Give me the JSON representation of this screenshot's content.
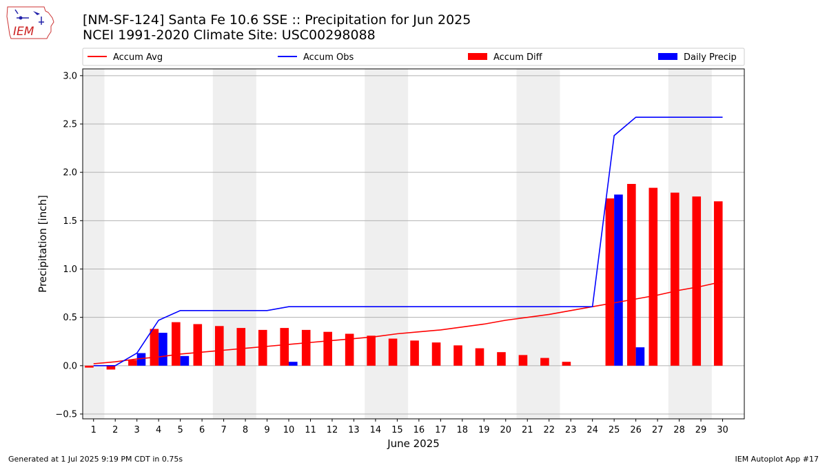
{
  "title_line1": "[NM-SF-124] Santa Fe 10.6 SSE :: Precipitation for Jun 2025",
  "title_line2": "NCEI 1991-2020 Climate Site: USC00298088",
  "footer_left": "Generated at 1 Jul 2025 9:19 PM CDT in 0.75s",
  "footer_right": "IEM Autoplot App #17",
  "logo_text": "IEM",
  "chart_data": {
    "type": "bar",
    "xlabel": "June 2025",
    "ylabel": "Precipitation [inch]",
    "xlim": [
      0.5,
      31
    ],
    "ylim": [
      -0.55,
      3.07
    ],
    "yticks": [
      -0.5,
      0.0,
      0.5,
      1.0,
      1.5,
      2.0,
      2.5,
      3.0
    ],
    "ytick_labels": [
      "−0.5",
      "0.0",
      "0.5",
      "1.0",
      "1.5",
      "2.0",
      "2.5",
      "3.0"
    ],
    "grid": "horizontal",
    "legend_placement": "top",
    "weekend_shading": [
      [
        0.5,
        1.5
      ],
      [
        6.5,
        8.5
      ],
      [
        13.5,
        15.5
      ],
      [
        20.5,
        22.5
      ],
      [
        27.5,
        29.5
      ]
    ],
    "days": [
      1,
      2,
      3,
      4,
      5,
      6,
      7,
      8,
      9,
      10,
      11,
      12,
      13,
      14,
      15,
      16,
      17,
      18,
      19,
      20,
      21,
      22,
      23,
      24,
      25,
      26,
      27,
      28,
      29,
      30
    ],
    "series": [
      {
        "name": "Accum Avg",
        "kind": "line",
        "color": "#ff0000",
        "values": [
          0.02,
          0.04,
          0.07,
          0.09,
          0.12,
          0.14,
          0.16,
          0.18,
          0.2,
          0.22,
          0.24,
          0.26,
          0.28,
          0.3,
          0.33,
          0.35,
          0.37,
          0.4,
          0.43,
          0.47,
          0.5,
          0.53,
          0.57,
          0.61,
          0.65,
          0.69,
          0.73,
          0.78,
          0.82,
          0.87
        ]
      },
      {
        "name": "Accum Obs",
        "kind": "line",
        "color": "#0000ff",
        "values": [
          0.0,
          0.0,
          0.13,
          0.47,
          0.57,
          0.57,
          0.57,
          0.57,
          0.57,
          0.61,
          0.61,
          0.61,
          0.61,
          0.61,
          0.61,
          0.61,
          0.61,
          0.61,
          0.61,
          0.61,
          0.61,
          0.61,
          0.61,
          0.61,
          2.38,
          2.57,
          2.57,
          2.57,
          2.57,
          2.57
        ]
      },
      {
        "name": "Accum Diff",
        "kind": "bar",
        "color": "#ff0000",
        "values": [
          -0.02,
          -0.04,
          0.06,
          0.38,
          0.45,
          0.43,
          0.41,
          0.39,
          0.37,
          0.39,
          0.37,
          0.35,
          0.33,
          0.31,
          0.28,
          0.26,
          0.24,
          0.21,
          0.18,
          0.14,
          0.11,
          0.08,
          0.04,
          0.0,
          1.73,
          1.88,
          1.84,
          1.79,
          1.75,
          1.7
        ]
      },
      {
        "name": "Daily Precip",
        "kind": "bar",
        "color": "#0000ff",
        "values": [
          0.0,
          0.0,
          0.13,
          0.34,
          0.1,
          0.0,
          0.0,
          0.0,
          0.0,
          0.04,
          0.0,
          0.0,
          0.0,
          0.0,
          0.0,
          0.0,
          0.0,
          0.0,
          0.0,
          0.0,
          0.0,
          0.0,
          0.0,
          0.0,
          1.77,
          0.19,
          0.0,
          0.0,
          0.0,
          0.0
        ]
      }
    ]
  }
}
